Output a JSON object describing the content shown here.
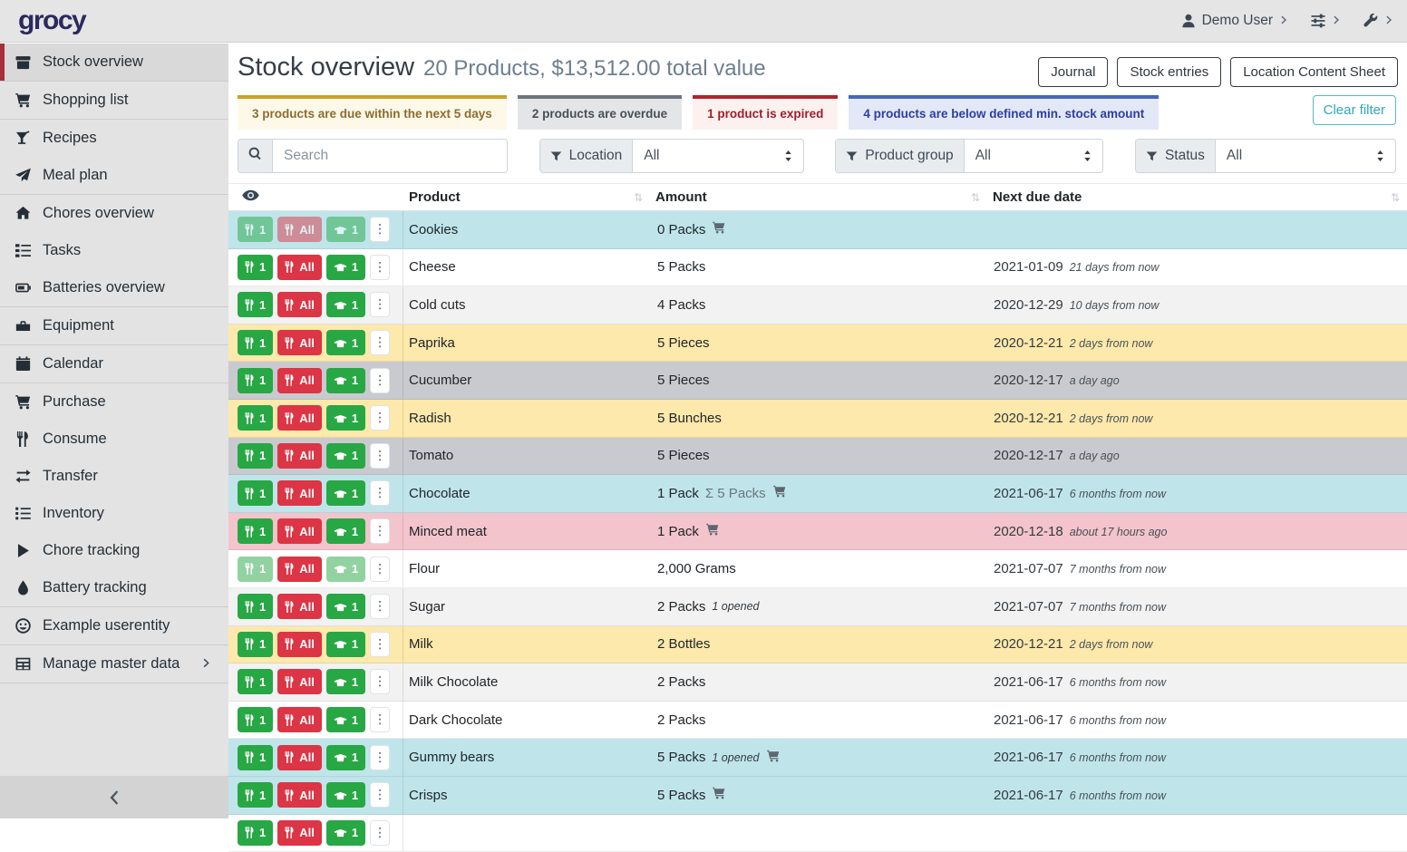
{
  "topbar": {
    "logo": "grocy",
    "menus": [
      {
        "name": "user-menu",
        "icon": "person-icon",
        "label": "Demo User"
      },
      {
        "name": "display-settings-menu",
        "icon": "sliders-icon",
        "label": ""
      },
      {
        "name": "admin-menu",
        "icon": "wrench-icon",
        "label": ""
      }
    ]
  },
  "sidebar": {
    "items": [
      {
        "icon": "box-icon",
        "label": "Stock overview",
        "active": true,
        "divider": true
      },
      {
        "icon": "cart-icon",
        "label": "Shopping list",
        "divider": true
      },
      {
        "icon": "cocktail-icon",
        "label": "Recipes"
      },
      {
        "icon": "paper-plane-icon",
        "label": "Meal plan",
        "divider": true
      },
      {
        "icon": "home-icon",
        "label": "Chores overview"
      },
      {
        "icon": "tasks-icon",
        "label": "Tasks"
      },
      {
        "icon": "battery-icon",
        "label": "Batteries overview",
        "divider": true
      },
      {
        "icon": "toolbox-icon",
        "label": "Equipment",
        "divider": true
      },
      {
        "icon": "calendar-icon",
        "label": "Calendar",
        "divider": true
      },
      {
        "icon": "cart-icon",
        "label": "Purchase"
      },
      {
        "icon": "utensils-icon",
        "label": "Consume"
      },
      {
        "icon": "transfer-icon",
        "label": "Transfer"
      },
      {
        "icon": "list-icon",
        "label": "Inventory"
      },
      {
        "icon": "play-icon",
        "label": "Chore tracking"
      },
      {
        "icon": "tint-icon",
        "label": "Battery tracking",
        "divider": true
      },
      {
        "icon": "smile-icon",
        "label": "Example userentity",
        "divider": true
      },
      {
        "icon": "table-grid-icon",
        "label": "Manage master data",
        "chevron": true,
        "divider": true
      }
    ],
    "collapse_icon": "chevron-left-icon"
  },
  "header": {
    "title": "Stock overview",
    "subtitle": "20 Products, $13,512.00 total value",
    "buttons": [
      "Journal",
      "Stock entries",
      "Location Content Sheet"
    ]
  },
  "banners": [
    {
      "type": "warning",
      "text": "3 products are due within the next 5 days"
    },
    {
      "type": "secondary",
      "text": "2 products are overdue"
    },
    {
      "type": "danger",
      "text": "1 product is expired"
    },
    {
      "type": "primary",
      "text": "4 products are below defined min. stock amount"
    }
  ],
  "clear_filter_label": "Clear filter",
  "filters": {
    "search_placeholder": "Search",
    "groups": [
      {
        "label": "Location",
        "value": "All",
        "css": "g-location"
      },
      {
        "label": "Product group",
        "value": "All",
        "css": "g-group"
      },
      {
        "label": "Status",
        "value": "All",
        "css": "g-status"
      }
    ]
  },
  "table": {
    "headers": {
      "product": "Product",
      "amount": "Amount",
      "due": "Next due date"
    },
    "sort_glyph": "⇅",
    "dots_glyph": "⋮",
    "sum_prefix": "Σ",
    "action_labels": {
      "consume_one": "1",
      "consume_all": "All",
      "open_one": "1"
    },
    "rows": [
      {
        "product": "Cookies",
        "amount": "0 Packs",
        "cart": true,
        "date": "",
        "relative": "",
        "status": "info",
        "faded": [
          "consume-one",
          "consume-all",
          "open-one"
        ]
      },
      {
        "product": "Cheese",
        "amount": "5 Packs",
        "date": "2021-01-09",
        "relative": "21 days from now",
        "status": "white",
        "faded": []
      },
      {
        "product": "Cold cuts",
        "amount": "4 Packs",
        "date": "2020-12-29",
        "relative": "10 days from now",
        "status": "stripe",
        "faded": []
      },
      {
        "product": "Paprika",
        "amount": "5 Pieces",
        "date": "2020-12-21",
        "relative": "2 days from now",
        "status": "warning",
        "faded": []
      },
      {
        "product": "Cucumber",
        "amount": "5 Pieces",
        "date": "2020-12-17",
        "relative": "a day ago",
        "status": "secondary",
        "faded": []
      },
      {
        "product": "Radish",
        "amount": "5 Bunches",
        "date": "2020-12-21",
        "relative": "2 days from now",
        "status": "warning",
        "faded": []
      },
      {
        "product": "Tomato",
        "amount": "5 Pieces",
        "date": "2020-12-17",
        "relative": "a day ago",
        "status": "secondary",
        "faded": []
      },
      {
        "product": "Chocolate",
        "amount": "1 Pack",
        "sum": "5 Packs",
        "cart": true,
        "date": "2021-06-17",
        "relative": "6 months from now",
        "status": "info",
        "faded": []
      },
      {
        "product": "Minced meat",
        "amount": "1 Pack",
        "cart": true,
        "date": "2020-12-18",
        "relative": "about 17 hours ago",
        "status": "danger",
        "faded": []
      },
      {
        "product": "Flour",
        "amount": "2,000 Grams",
        "date": "2021-07-07",
        "relative": "7 months from now",
        "status": "white",
        "faded": [
          "consume-one",
          "open-one"
        ]
      },
      {
        "product": "Sugar",
        "amount": "2 Packs",
        "opened": "1 opened",
        "date": "2021-07-07",
        "relative": "7 months from now",
        "status": "stripe",
        "faded": []
      },
      {
        "product": "Milk",
        "amount": "2 Bottles",
        "date": "2020-12-21",
        "relative": "2 days from now",
        "status": "warning",
        "faded": []
      },
      {
        "product": "Milk Chocolate",
        "amount": "2 Packs",
        "date": "2021-06-17",
        "relative": "6 months from now",
        "status": "stripe",
        "faded": []
      },
      {
        "product": "Dark Chocolate",
        "amount": "2 Packs",
        "date": "2021-06-17",
        "relative": "6 months from now",
        "status": "white",
        "faded": []
      },
      {
        "product": "Gummy bears",
        "amount": "5 Packs",
        "opened": "1 opened",
        "cart": true,
        "date": "2021-06-17",
        "relative": "6 months from now",
        "status": "info",
        "faded": []
      },
      {
        "product": "Crisps",
        "amount": "5 Packs",
        "cart": true,
        "date": "2021-06-17",
        "relative": "6 months from now",
        "status": "info",
        "faded": []
      },
      {
        "product": "",
        "amount": "",
        "date": "",
        "relative": "",
        "status": "white",
        "faded": [],
        "partial": true
      }
    ]
  },
  "colors": {
    "sidebar_active_border": "#a92e3b",
    "success": "#28a745",
    "danger": "#dc3545",
    "row_info": "#bfe5eb",
    "row_warning": "#fce9ab",
    "row_secondary": "#c9cacf",
    "row_danger": "#f3c4cc",
    "row_stripe": "#f2f2f2",
    "row_white": "#ffffff",
    "banner_warning": {
      "border": "#c9a227",
      "bg": "#fdf8e8",
      "text": "#8a6d2f"
    },
    "banner_secondary": {
      "border": "#6c757d",
      "bg": "#e4e5e7",
      "text": "#494f54"
    },
    "banner_danger": {
      "border": "#b22230",
      "bg": "#fdf1f0",
      "text": "#9c1f2b"
    },
    "banner_primary": {
      "border": "#4667b2",
      "bg": "#e2e8f6",
      "text": "#2d3f9e"
    },
    "clear_filter_text": "#2fa8b7"
  }
}
